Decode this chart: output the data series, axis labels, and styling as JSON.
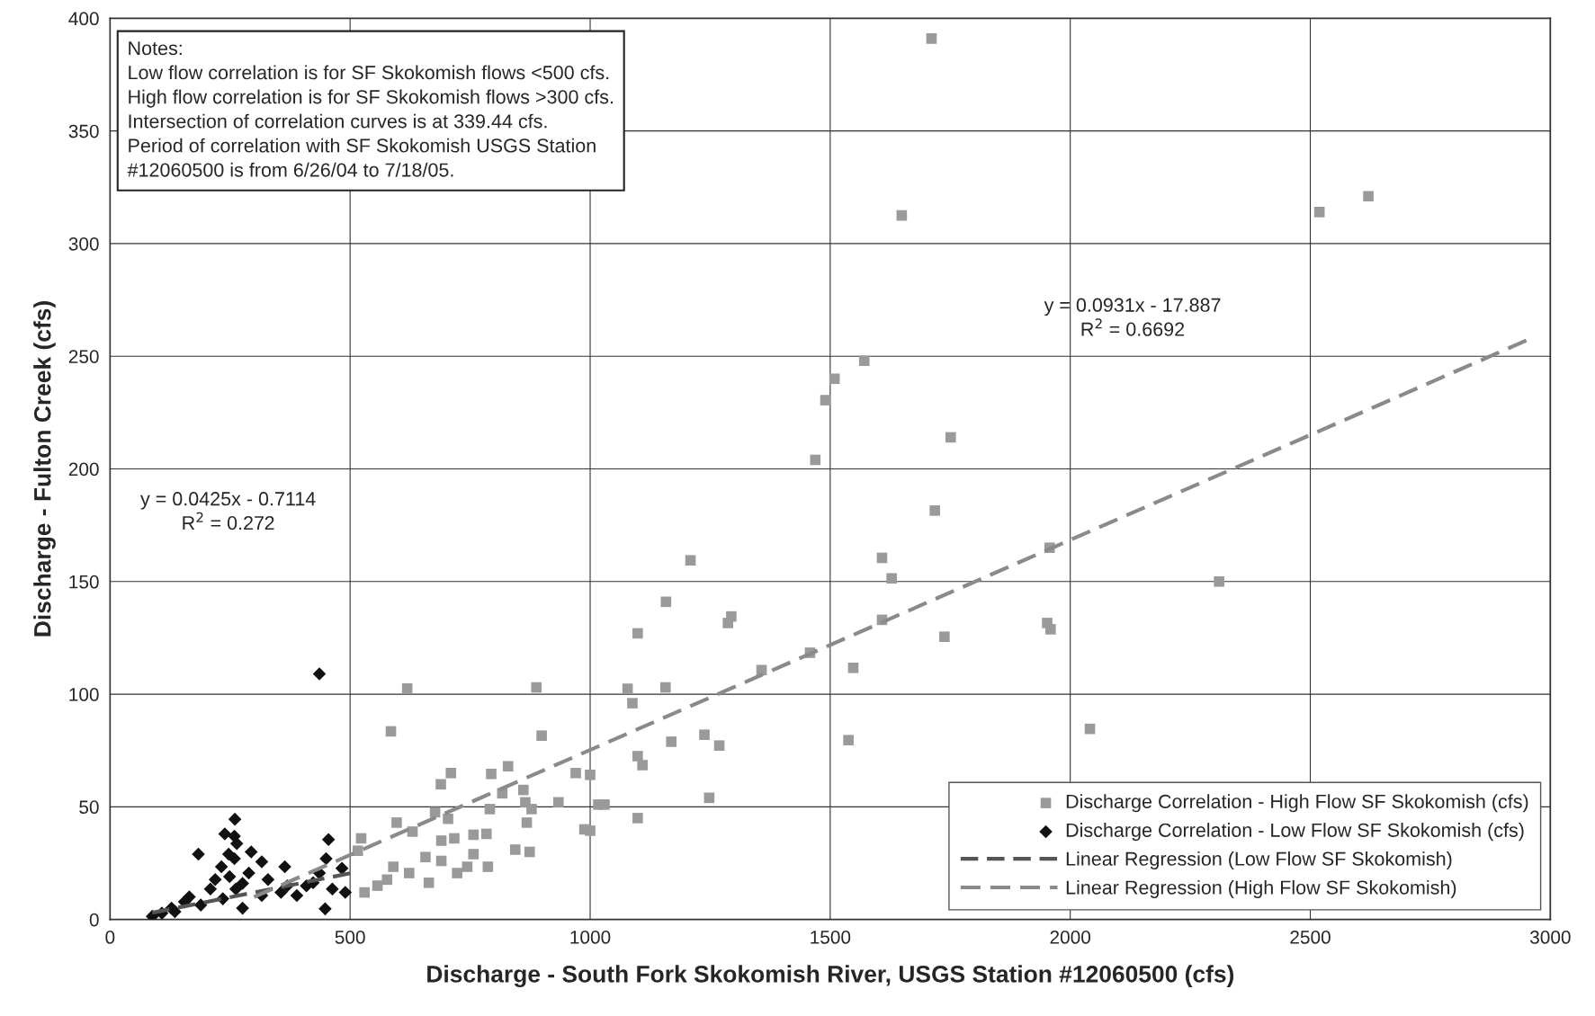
{
  "chart_data": {
    "type": "scatter",
    "xlabel": "Discharge - South Fork Skokomish River, USGS Station #12060500 (cfs)",
    "ylabel": "Discharge - Fulton Creek (cfs)",
    "xlim": [
      0,
      3000
    ],
    "xticks": [
      0,
      500,
      1000,
      1500,
      2000,
      2500,
      3000
    ],
    "ylim": [
      0,
      400
    ],
    "yticks": [
      0,
      50,
      100,
      150,
      200,
      250,
      300,
      350,
      400
    ],
    "grid": true,
    "legend": "bottom right",
    "annotations": [
      "Notes:\nLow flow correlation is for SF Skokomish flows <500 cfs.\nHigh flow correlation is for SF Skokomish flows >300 cfs.\nIntersection of correlation curves is at 339.44 cfs.\nPeriod of correlation with SF Skokomish USGS Station\n#12060500 is from 6/26/04 to 7/18/05.",
      "y = 0.0931x - 17.887\nR$^{2}$ = 0.6692",
      "y = 0.0425x - 0.7114\nR$^{2}$ = 0.272"
    ],
    "series": [
      {
        "name": "Discharge Correlation - High Flow SF Skokomish (cfs)",
        "marker": "square",
        "color": "#9a9a9a",
        "x": [
          1711,
          1649,
          2519,
          2621,
          1571,
          1509,
          1490,
          1469,
          1751,
          1718,
          1608,
          1628,
          1957,
          1209,
          1158,
          1294,
          1287,
          1099,
          1608,
          1738,
          1952,
          1959,
          2310,
          1357,
          1458,
          1548,
          619,
          888,
          1078,
          1157,
          1088,
          899,
          585,
          1238,
          1269,
          1538,
          2041,
          1099,
          1109,
          970,
          1000,
          710,
          689,
          794,
          829,
          861,
          934,
          1017,
          1030,
          1248,
          1099,
          1000,
          988,
          865,
          878,
          868,
          844,
          874,
          787,
          677,
          704,
          597,
          630,
          690,
          717,
          757,
          784,
          657,
          623,
          557,
          523,
          530,
          516,
          590,
          690,
          723,
          757,
          791,
          817,
          664,
          577,
          744,
          1169
        ],
        "values": [
          391,
          312.5,
          314,
          321,
          248,
          240,
          230.5,
          204,
          214,
          181.5,
          160.5,
          151.4,
          165,
          159.4,
          141,
          134.5,
          131.6,
          127,
          133,
          125.5,
          131.6,
          128.8,
          150,
          110.7,
          118.4,
          111.7,
          102.5,
          103,
          102.4,
          103,
          96,
          81.6,
          83.5,
          82,
          77.2,
          79.6,
          84.6,
          72.5,
          68.5,
          65,
          64.2,
          65,
          60,
          64.6,
          68,
          57.5,
          52,
          51,
          51,
          54,
          45,
          39.4,
          40,
          52,
          49,
          43,
          31,
          30,
          23.4,
          47.6,
          44.7,
          43,
          39,
          35,
          36,
          37.6,
          38,
          27.7,
          20.6,
          15,
          36,
          12,
          30.5,
          23.4,
          26,
          20.6,
          29,
          49,
          56,
          16.3,
          17.7,
          23.4,
          78.9
        ]
      },
      {
        "name": "Discharge Correlation - Low Flow SF Skokomish (cfs)",
        "marker": "diamond",
        "color": "#111111",
        "x": [
          436,
          260,
          239,
          259,
          264,
          184,
          294,
          247,
          259,
          232,
          316,
          364,
          455,
          450,
          483,
          448,
          276,
          219,
          276,
          165,
          128,
          88,
          108,
          329,
          356,
          389,
          423,
          463,
          490,
          316,
          235,
          189,
          289,
          369,
          262,
          209,
          249,
          155,
          436,
          409,
          135
        ],
        "values": [
          109,
          44.5,
          38,
          37,
          33.7,
          29,
          30,
          29,
          27,
          23.4,
          25.6,
          23.4,
          35.5,
          27,
          22.7,
          4.7,
          16,
          17.7,
          5,
          10,
          5,
          1.4,
          2.8,
          17.7,
          12,
          10.6,
          16.3,
          13.5,
          12,
          10.6,
          9.2,
          6.4,
          20.6,
          14.9,
          13.5,
          13.5,
          19,
          7.8,
          20.6,
          14.9,
          3.5
        ]
      },
      {
        "name": "Linear Regression (Low Flow SF Skokomish)",
        "type": "line",
        "marker": "none",
        "line_style": "dashed",
        "color": "#555555",
        "x": [
          88,
          500
        ],
        "values": [
          3,
          20.5
        ]
      },
      {
        "name": "Linear Regression (High Flow SF Skokomish)",
        "type": "line",
        "marker": "none",
        "line_style": "dashed",
        "color": "#8a8a8a",
        "x": [
          300,
          2950
        ],
        "values": [
          10,
          257
        ]
      }
    ]
  }
}
